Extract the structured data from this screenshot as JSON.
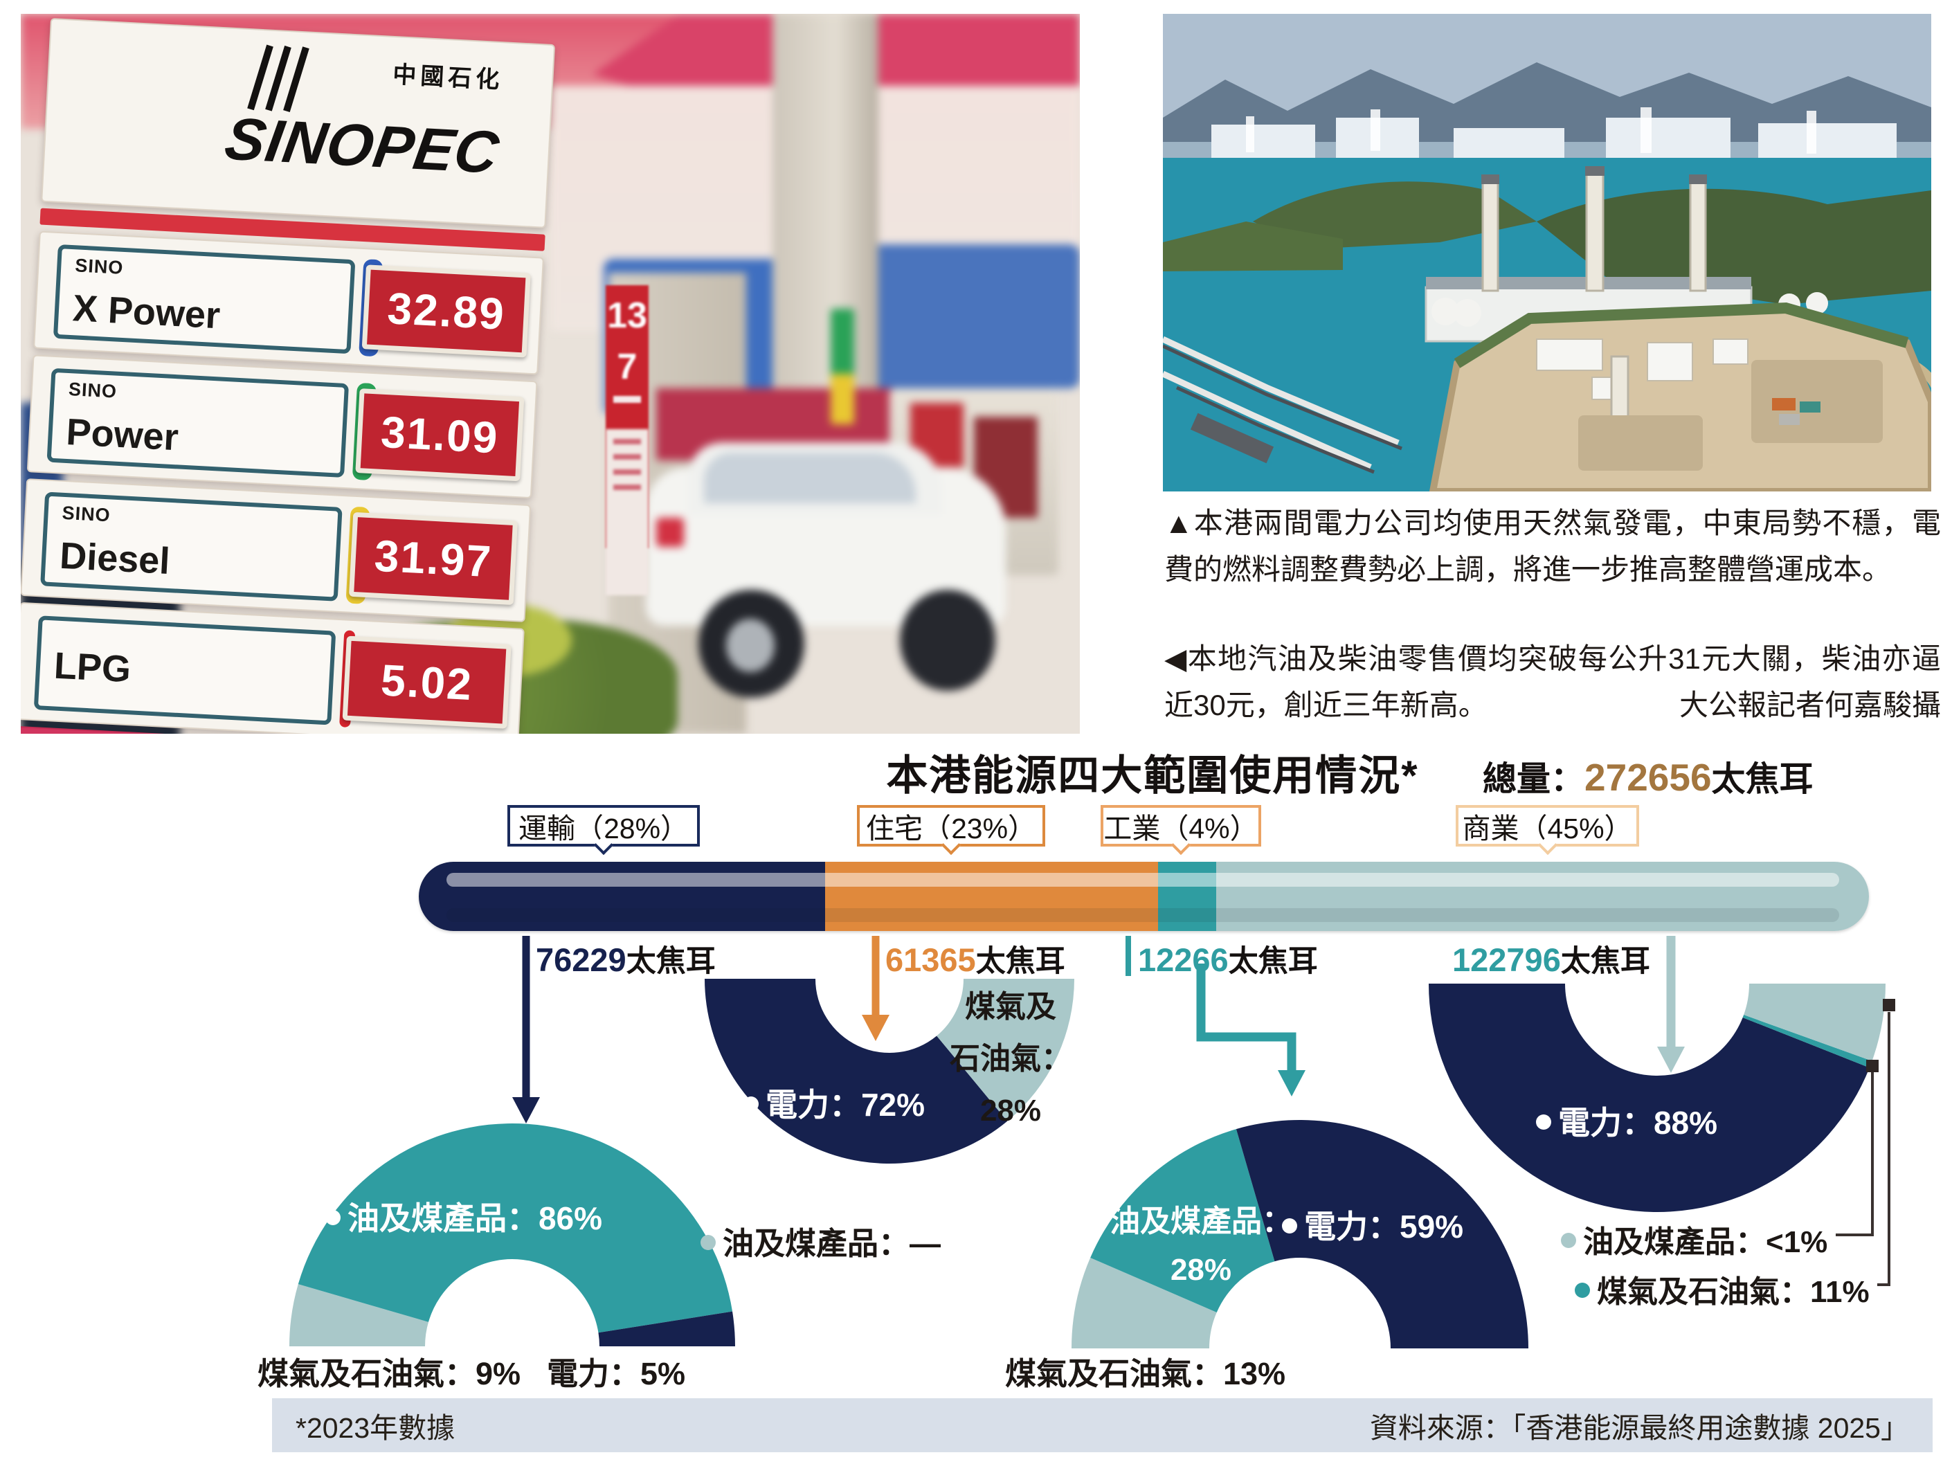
{
  "colors": {
    "navy": "#16214e",
    "orange": "#e0893c",
    "teal": "#2f9da1",
    "pale": "#a9c8c9",
    "brown": "#a3763f",
    "ink": "#2b2422",
    "footer_bg": "#d8dfe9",
    "box_border_transport": "#1a2b5c",
    "box_border_residential": "#dd8a3e",
    "box_border_industry": "#eca465",
    "box_border_commercial": "#f3cda0"
  },
  "photo_left": {
    "brand_cn": "中國石化",
    "brand_en": "SINOPEC",
    "rows": [
      {
        "sub": "SINO",
        "name": "X Power",
        "bar_color": "#2f5cb8",
        "price": "32.89"
      },
      {
        "sub": "SINO",
        "name": "Power",
        "bar_color": "#2aa257",
        "price": "31.09"
      },
      {
        "sub": "SINO",
        "name": "Diesel",
        "bar_color": "#e9c832",
        "price": "31.97"
      },
      {
        "sub": "",
        "name": "LPG",
        "bar_color": "#d6242d",
        "price": "5.02"
      }
    ],
    "banner_numbers": {
      "n1": "13",
      "n2": "7"
    }
  },
  "captions": {
    "photo_right": "▲本港兩間電力公司均使用天然氣發電，中東局勢不穩，電費的燃料調整費勢必上調，將進一步推高整體營運成本。",
    "photo_left": "◀本地汽油及柴油零售價均突破每公升31元大關，柴油亦逼近30元，創近三年新高。",
    "credit": "大公報記者何嘉駿攝"
  },
  "chart_data": {
    "type": "stacked-bar-with-half-donuts",
    "title": "本港能源四大範圍使用情況*",
    "total_label": "總量：",
    "total_value": "272656",
    "unit": "太焦耳",
    "legend_note": "colors: navy=電力, teal=油及煤產品, pale=煤氣及石油氣",
    "sectors": [
      {
        "name": "運輸",
        "share_pct": 28,
        "box_label": "運輸（28%）",
        "value": "76229",
        "color": "navy",
        "donut": {
          "orientation": "down",
          "slices": [
            {
              "color": "pale",
              "pct": 9
            },
            {
              "color": "teal",
              "pct": 86
            },
            {
              "color": "navy",
              "pct": 5
            }
          ]
        },
        "labels": {
          "main": "油及煤產品：86%",
          "bottom_left": "煤氣及石油氣：9%",
          "bottom_right": "電力：5%"
        }
      },
      {
        "name": "住宅",
        "share_pct": 23,
        "box_label": "住宅（23%）",
        "value": "61365",
        "color": "orange",
        "donut": {
          "orientation": "up",
          "slices": [
            {
              "color": "navy",
              "pct": 72
            },
            {
              "color": "pale",
              "pct": 28
            }
          ]
        },
        "labels": {
          "main": "電力：72%",
          "wedge": "煤氣及\n石油氣：\n28%",
          "below": "油及煤產品：—"
        }
      },
      {
        "name": "工業",
        "share_pct": 4,
        "box_label": "工業（4%）",
        "value": "12266",
        "color": "teal",
        "donut": {
          "orientation": "down",
          "slices": [
            {
              "color": "pale",
              "pct": 13
            },
            {
              "color": "teal",
              "pct": 28
            },
            {
              "color": "navy",
              "pct": 59
            }
          ]
        },
        "labels": {
          "main": "電力：59%",
          "teal_wedge": "油及煤產品：\n28%",
          "below": "煤氣及石油氣：13%"
        }
      },
      {
        "name": "商業",
        "share_pct": 45,
        "box_label": "商業（45%）",
        "value": "122796",
        "color": "pale",
        "donut": {
          "orientation": "up",
          "slices": [
            {
              "color": "navy",
              "pct": 88
            },
            {
              "color": "teal",
              "pct": 1
            },
            {
              "color": "pale",
              "pct": 11
            }
          ]
        },
        "labels": {
          "main": "電力：88%",
          "legend1": "油及煤產品：<1%",
          "legend2": "煤氣及石油氣：11%"
        }
      }
    ]
  },
  "footer": {
    "note": "*2023年數據",
    "source": "資料來源：「香港能源最終用途數據 2025」"
  }
}
